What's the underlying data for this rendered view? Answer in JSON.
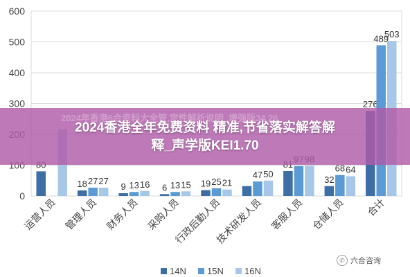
{
  "chart_data": {
    "type": "bar",
    "categories": [
      "运营人员",
      "管理人员",
      "财务人员",
      "采购人员",
      "行政后勤人员",
      "技术研发人员",
      "客服人员",
      "仓储人员",
      "合计"
    ],
    "series": [
      {
        "name": "14N",
        "color": "#3e6ea6",
        "values": [
          80,
          18,
          9,
          6,
          19,
          32,
          81,
          32,
          276
        ]
      },
      {
        "name": "15N",
        "color": "#5b9bd5",
        "values": [
          null,
          27,
          13,
          13,
          25,
          47,
          97,
          68,
          489
        ]
      },
      {
        "name": "16N",
        "color": "#a7c7e8",
        "values": [
          217,
          27,
          16,
          15,
          21,
          50,
          98,
          64,
          503
        ]
      }
    ],
    "data_labels": [
      [
        "80",
        "",
        ""
      ],
      [
        "18",
        "27",
        "27"
      ],
      [
        "9",
        "13",
        "16"
      ],
      [
        "6",
        "13",
        "15"
      ],
      [
        "19",
        "25",
        "21"
      ],
      [
        "",
        "47",
        "50"
      ],
      [
        "81",
        "97",
        "98"
      ],
      [
        "32",
        "68",
        "64"
      ],
      [
        "276",
        "489",
        "503"
      ]
    ],
    "ylim": [
      0,
      600
    ],
    "yticks": [
      "0",
      "100",
      "200",
      "300",
      "400",
      "500",
      "600"
    ],
    "grid": true,
    "legend": "bottom"
  },
  "overlay": {
    "title_line1": "2024香港全年免费资料 精准,节省落实解答解",
    "title_line2": "释_声学版KEI1.70",
    "subtitle": "2024年香港6合资料大全管,定性解析说明_增强版34.26"
  },
  "watermark": {
    "text": "六合咨询",
    "icon": "wechat-icon"
  }
}
